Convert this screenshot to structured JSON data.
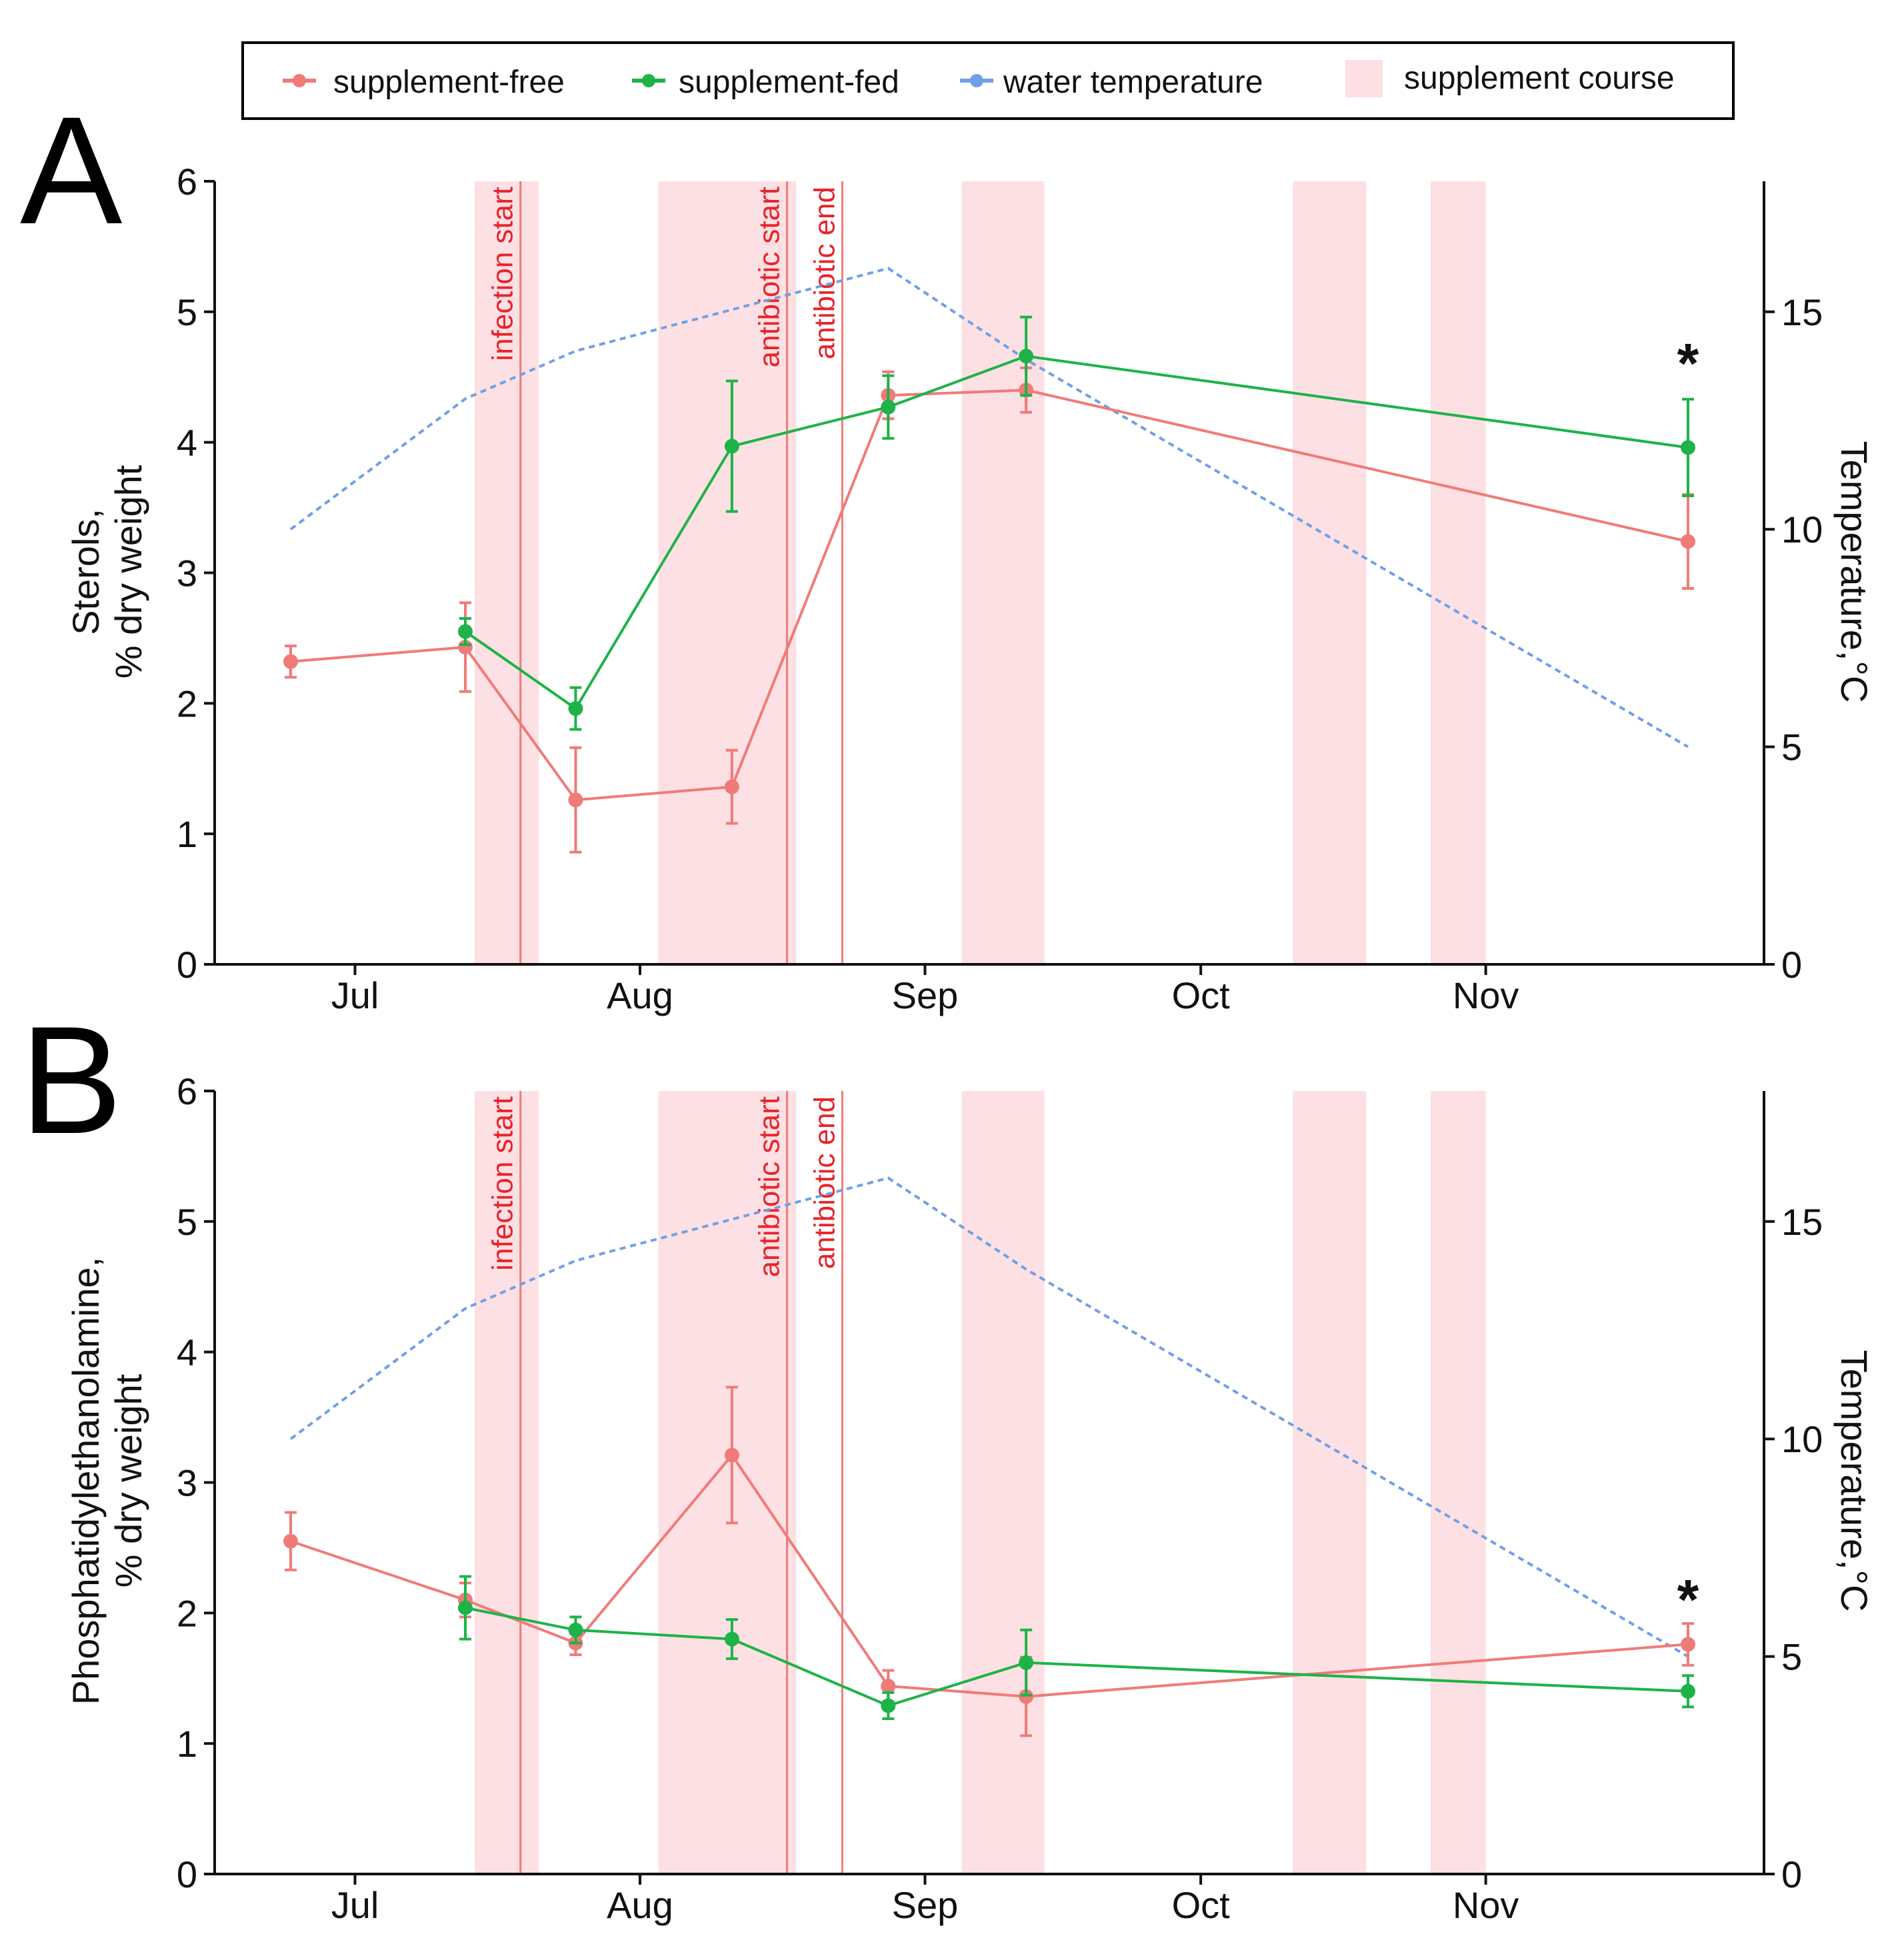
{
  "legend": {
    "items": [
      {
        "label": "supplement-free",
        "color": "#ef7b78",
        "kind": "point-line"
      },
      {
        "label": "supplement-fed",
        "color": "#1db348",
        "kind": "point-line"
      },
      {
        "label": "water temperature",
        "color": "#6fa0e6",
        "kind": "point-line"
      },
      {
        "label": "supplement course",
        "color": "#fde0e3",
        "kind": "band"
      }
    ]
  },
  "colors": {
    "free": "#ef7b78",
    "fed": "#1db348",
    "temp": "#6fa0e6",
    "band": "#fde0e3",
    "event": "#ef7b78",
    "event_text": "#e8232a"
  },
  "chart_data": [
    {
      "panel": "A",
      "type": "line",
      "ylabel": [
        "Sterols,",
        "% dry weight"
      ],
      "y2label": "Temperature,°C",
      "ylim": [
        0,
        6
      ],
      "yticks": [
        0,
        1,
        2,
        3,
        4,
        5,
        6
      ],
      "y2lim": [
        0,
        18
      ],
      "y2ticks": [
        0,
        5,
        10,
        15
      ],
      "xlim_days": [
        0,
        165
      ],
      "xticks": [
        {
          "label": "Jul",
          "day": 7
        },
        {
          "label": "Aug",
          "day": 38
        },
        {
          "label": "Sep",
          "day": 69
        },
        {
          "label": "Oct",
          "day": 99
        },
        {
          "label": "Nov",
          "day": 130
        }
      ],
      "supplement_course": [
        [
          20,
          27
        ],
        [
          40,
          55
        ],
        [
          73,
          82
        ],
        [
          109,
          117
        ],
        [
          124,
          130
        ]
      ],
      "events": [
        {
          "label": "infection start",
          "day": 25
        },
        {
          "label": "antibiotic start",
          "day": 54
        },
        {
          "label": "antibiotic end",
          "day": 60
        }
      ],
      "annotation": {
        "text": "*",
        "day": 152,
        "value": 4.6
      },
      "series": [
        {
          "name": "supplement-free",
          "days": [
            0,
            19,
            31,
            48,
            65,
            80,
            152
          ],
          "values": [
            2.32,
            2.43,
            1.26,
            1.36,
            4.36,
            4.4,
            3.24
          ],
          "errors": [
            0.12,
            0.34,
            0.4,
            0.28,
            0.18,
            0.17,
            0.36
          ]
        },
        {
          "name": "supplement-fed",
          "days": [
            19,
            31,
            48,
            65,
            80,
            152
          ],
          "values": [
            2.55,
            1.96,
            3.97,
            4.27,
            4.66,
            3.96
          ],
          "errors": [
            0.1,
            0.16,
            0.5,
            0.24,
            0.3,
            0.37
          ]
        },
        {
          "name": "water temperature",
          "axis": "right",
          "days": [
            0,
            19,
            31,
            65,
            80,
            152
          ],
          "values": [
            10,
            13,
            14.1,
            16,
            13.9,
            5
          ]
        }
      ]
    },
    {
      "panel": "B",
      "type": "line",
      "ylabel": [
        "Phosphatidylethanolamine,",
        "% dry weight"
      ],
      "y2label": "Temperature,°C",
      "ylim": [
        0,
        6
      ],
      "yticks": [
        0,
        1,
        2,
        3,
        4,
        5,
        6
      ],
      "y2lim": [
        0,
        18
      ],
      "y2ticks": [
        0,
        5,
        10,
        15
      ],
      "xlim_days": [
        0,
        165
      ],
      "xticks": [
        {
          "label": "Jul",
          "day": 7
        },
        {
          "label": "Aug",
          "day": 38
        },
        {
          "label": "Sep",
          "day": 69
        },
        {
          "label": "Oct",
          "day": 99
        },
        {
          "label": "Nov",
          "day": 130
        }
      ],
      "supplement_course": [
        [
          20,
          27
        ],
        [
          40,
          55
        ],
        [
          73,
          82
        ],
        [
          109,
          117
        ],
        [
          124,
          130
        ]
      ],
      "events": [
        {
          "label": "infection start",
          "day": 25
        },
        {
          "label": "antibiotic start",
          "day": 54
        },
        {
          "label": "antibiotic end",
          "day": 60
        }
      ],
      "annotation": {
        "text": "*",
        "day": 152,
        "value": 2.1
      },
      "series": [
        {
          "name": "supplement-free",
          "days": [
            0,
            19,
            31,
            48,
            65,
            80,
            152
          ],
          "values": [
            2.55,
            2.1,
            1.77,
            3.21,
            1.44,
            1.36,
            1.76
          ],
          "errors": [
            0.22,
            0.13,
            0.09,
            0.52,
            0.12,
            0.3,
            0.16
          ]
        },
        {
          "name": "supplement-fed",
          "days": [
            19,
            31,
            48,
            65,
            80,
            152
          ],
          "values": [
            2.04,
            1.87,
            1.8,
            1.29,
            1.62,
            1.4
          ],
          "errors": [
            0.24,
            0.1,
            0.15,
            0.1,
            0.25,
            0.12
          ]
        },
        {
          "name": "water temperature",
          "axis": "right",
          "days": [
            0,
            19,
            31,
            65,
            80,
            152
          ],
          "values": [
            10,
            13,
            14.1,
            16,
            13.9,
            5
          ]
        }
      ]
    }
  ]
}
